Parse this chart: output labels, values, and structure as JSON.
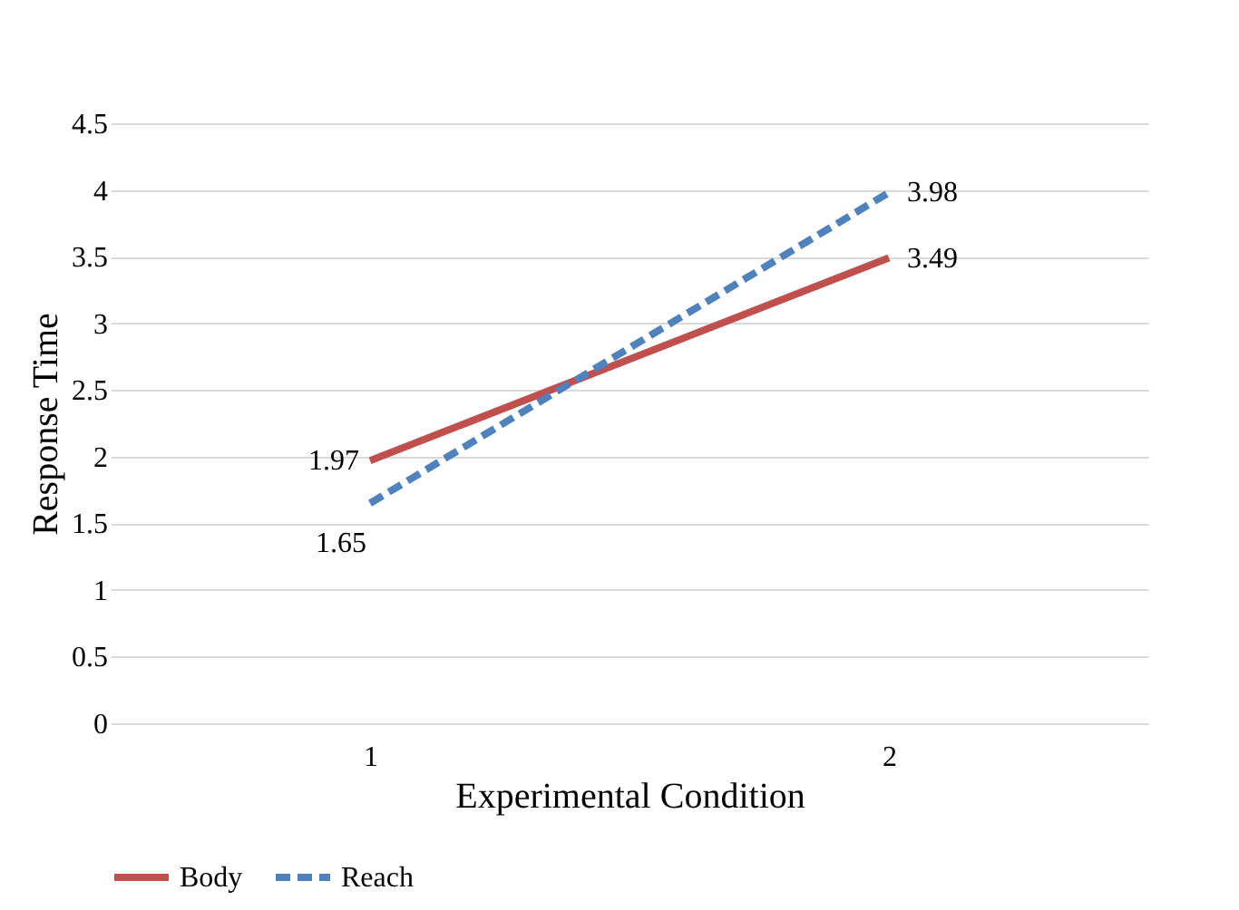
{
  "chart_data": {
    "type": "line",
    "xlabel": "Experimental Condition",
    "ylabel": "Response Time",
    "categories": [
      "1",
      "2"
    ],
    "series": [
      {
        "name": "Body",
        "color": "#c0504d",
        "values": [
          1.97,
          3.49
        ],
        "line_style": "solid"
      },
      {
        "name": "Reach",
        "color": "#4f81bd",
        "values": [
          1.65,
          3.98
        ],
        "line_style": "dashed"
      }
    ],
    "ylim": [
      0,
      4.5
    ],
    "yticks": [
      0,
      0.5,
      1,
      1.5,
      2,
      2.5,
      3,
      3.5,
      4,
      4.5
    ],
    "grid": "y",
    "legend": "bottom",
    "data_labels": true,
    "marker": "none"
  }
}
